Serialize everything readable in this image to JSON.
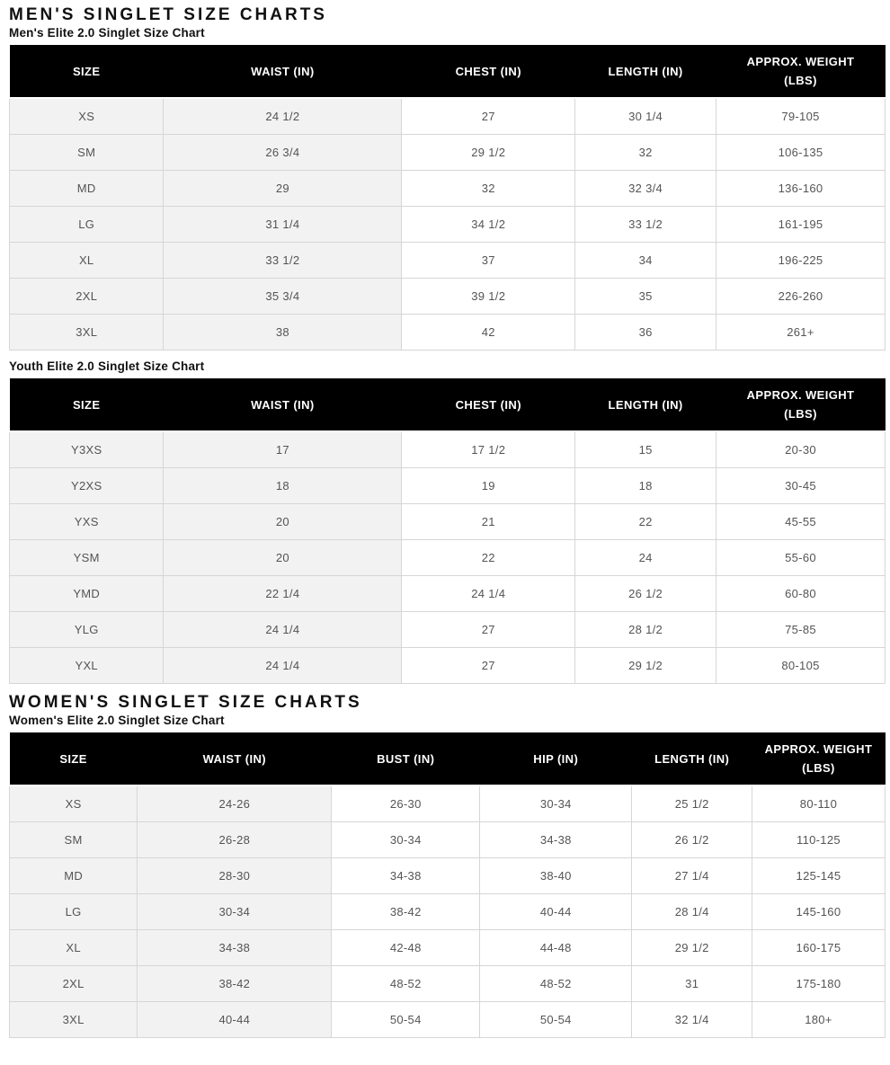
{
  "colors": {
    "header_bg": "#000000",
    "header_text": "#ffffff",
    "shaded_cell_bg": "#f2f2f2",
    "cell_border": "#d6d6d6",
    "body_text": "#545454",
    "title_text": "#111111"
  },
  "sections": [
    {
      "title": "MEN'S SINGLET SIZE CHARTS",
      "subtitle": "Men's Elite 2.0 Singlet Size Chart",
      "table": {
        "shaded_columns": 2,
        "columns": [
          "SIZE",
          "WAIST (IN)",
          "CHEST (IN)",
          "LENGTH (IN)",
          "APPROX. WEIGHT\n(LBS)"
        ],
        "rows": [
          [
            "XS",
            "24 1/2",
            "27",
            "30 1/4",
            "79-105"
          ],
          [
            "SM",
            "26 3/4",
            "29 1/2",
            "32",
            "106-135"
          ],
          [
            "MD",
            "29",
            "32",
            "32 3/4",
            "136-160"
          ],
          [
            "LG",
            "31 1/4",
            "34 1/2",
            "33 1/2",
            "161-195"
          ],
          [
            "XL",
            "33 1/2",
            "37",
            "34",
            "196-225"
          ],
          [
            "2XL",
            "35 3/4",
            "39 1/2",
            "35",
            "226-260"
          ],
          [
            "3XL",
            "38",
            "42",
            "36",
            "261+"
          ]
        ]
      }
    },
    {
      "title": null,
      "subtitle": "Youth Elite 2.0 Singlet Size Chart",
      "table": {
        "shaded_columns": 2,
        "columns": [
          "SIZE",
          "WAIST (IN)",
          "CHEST (IN)",
          "LENGTH (IN)",
          "APPROX. WEIGHT\n(LBS)"
        ],
        "rows": [
          [
            "Y3XS",
            "17",
            "17 1/2",
            "15",
            "20-30"
          ],
          [
            "Y2XS",
            "18",
            "19",
            "18",
            "30-45"
          ],
          [
            "YXS",
            "20",
            "21",
            "22",
            "45-55"
          ],
          [
            "YSM",
            "20",
            "22",
            "24",
            "55-60"
          ],
          [
            "YMD",
            "22 1/4",
            "24 1/4",
            "26 1/2",
            "60-80"
          ],
          [
            "YLG",
            "24 1/4",
            "27",
            "28 1/2",
            "75-85"
          ],
          [
            "YXL",
            "24 1/4",
            "27",
            "29 1/2",
            "80-105"
          ]
        ]
      }
    },
    {
      "title": "WOMEN'S SINGLET SIZE CHARTS",
      "subtitle": "Women's Elite 2.0 Singlet Size Chart",
      "table": {
        "shaded_columns": 2,
        "columns": [
          "SIZE",
          "WAIST (IN)",
          "BUST (IN)",
          "HIP (IN)",
          "LENGTH (IN)",
          "APPROX. WEIGHT\n(LBS)"
        ],
        "rows": [
          [
            "XS",
            "24-26",
            "26-30",
            "30-34",
            "25 1/2",
            "80-110"
          ],
          [
            "SM",
            "26-28",
            "30-34",
            "34-38",
            "26 1/2",
            "110-125"
          ],
          [
            "MD",
            "28-30",
            "34-38",
            "38-40",
            "27 1/4",
            "125-145"
          ],
          [
            "LG",
            "30-34",
            "38-42",
            "40-44",
            "28 1/4",
            "145-160"
          ],
          [
            "XL",
            "34-38",
            "42-48",
            "44-48",
            "29 1/2",
            "160-175"
          ],
          [
            "2XL",
            "38-42",
            "48-52",
            "48-52",
            "31",
            "175-180"
          ],
          [
            "3XL",
            "40-44",
            "50-54",
            "50-54",
            "32 1/4",
            "180+"
          ]
        ]
      }
    }
  ]
}
